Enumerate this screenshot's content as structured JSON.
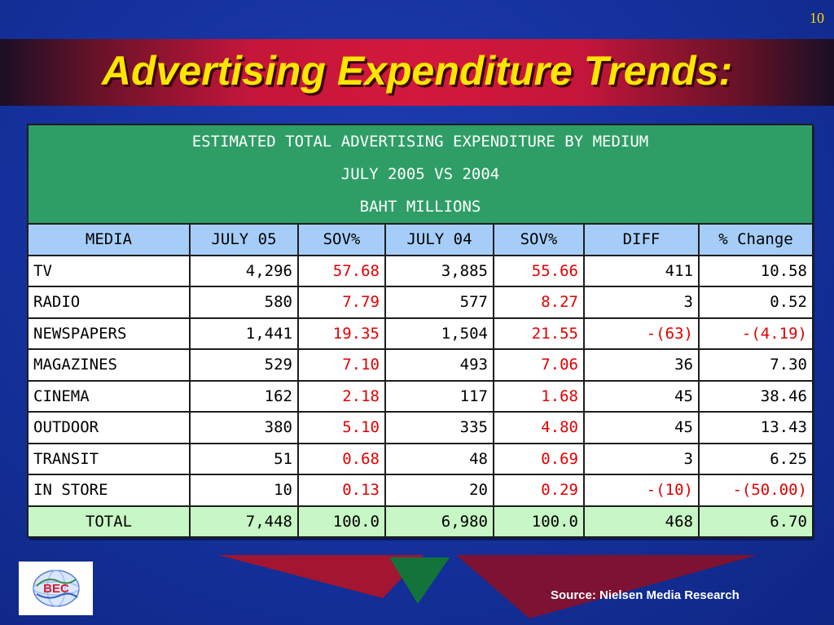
{
  "slide": {
    "number": "10",
    "title": "Advertising Expenditure Trends:"
  },
  "table": {
    "caption": [
      "ESTIMATED TOTAL ADVERTISING EXPENDITURE BY MEDIUM",
      "JULY 2005 VS 2004",
      "BAHT MILLIONS"
    ],
    "columns": [
      "MEDIA",
      "JULY 05",
      "SOV%",
      "JULY 04",
      "SOV%",
      "DIFF",
      "% Change"
    ],
    "rows": [
      [
        "TV",
        "4,296",
        "57.68",
        "3,885",
        "55.66",
        "411",
        "10.58"
      ],
      [
        "RADIO",
        "580",
        "7.79",
        "577",
        "8.27",
        "3",
        "0.52"
      ],
      [
        "NEWSPAPERS",
        "1,441",
        "19.35",
        "1,504",
        "21.55",
        "-(63)",
        "-(4.19)"
      ],
      [
        "MAGAZINES",
        "529",
        "7.10",
        "493",
        "7.06",
        "36",
        "7.30"
      ],
      [
        "CINEMA",
        "162",
        "2.18",
        "117",
        "1.68",
        "45",
        "38.46"
      ],
      [
        "OUTDOOR",
        "380",
        "5.10",
        "335",
        "4.80",
        "45",
        "13.43"
      ],
      [
        "TRANSIT",
        "51",
        "0.68",
        "48",
        "0.69",
        "3",
        "6.25"
      ],
      [
        "IN STORE",
        "10",
        "0.13",
        "20",
        "0.29",
        "-(10)",
        "-(50.00)"
      ]
    ],
    "total": [
      "TOTAL",
      "7,448",
      "100.0",
      "6,980",
      "100.0",
      "468",
      "6.70"
    ]
  },
  "logo": {
    "text": "BEC",
    "icon": "globe-logo-icon"
  },
  "source": "Source: Nielsen Media Research",
  "colors": {
    "background": "#1633a0",
    "title": "#ffe600",
    "title_band": "#d2183c",
    "caption_bg": "#2e9e66",
    "header_bg": "#a6cdf7",
    "total_bg": "#c7f7c4",
    "sov_text": "#e00000"
  }
}
